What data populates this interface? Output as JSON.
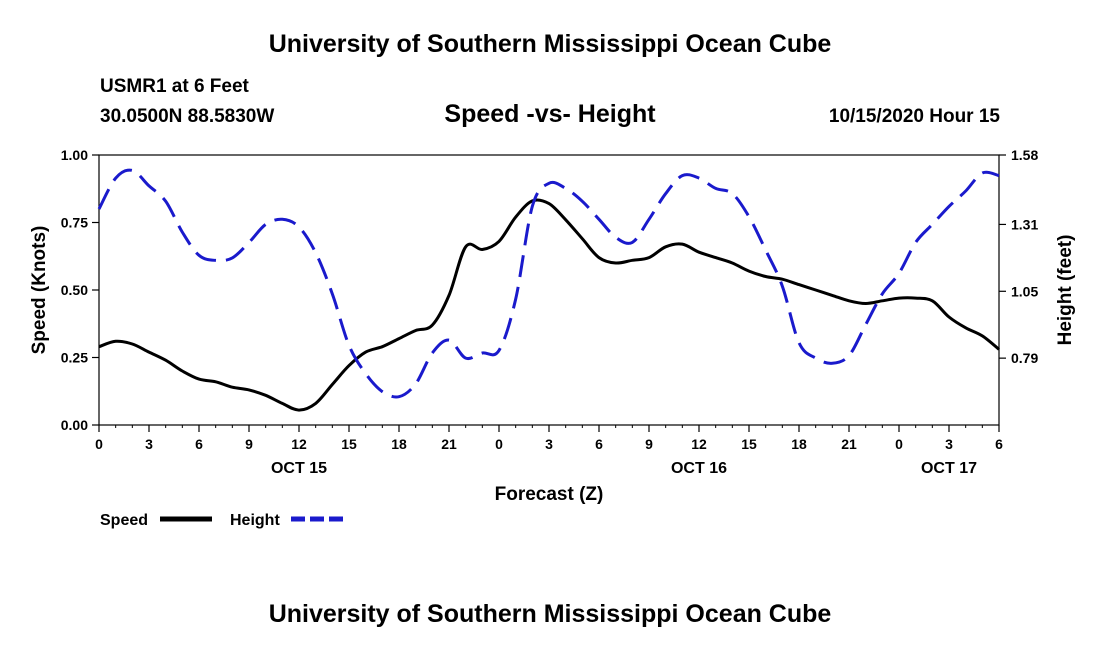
{
  "header": {
    "title_top": "University of Southern Mississippi Ocean Cube",
    "station": "USMR1 at 6 Feet",
    "coords": "30.0500N 88.5830W",
    "chart_title": "Speed -vs- Height",
    "run_time": "10/15/2020 Hour 15",
    "title_bottom": "University of Southern Mississippi Ocean Cube"
  },
  "colors": {
    "speed": "#000000",
    "height": "#1a1acc"
  },
  "chart_data": {
    "type": "line",
    "title": "Speed -vs- Height",
    "xlabel": "Forecast (Z)",
    "ylabel_left": "Speed (Knots)",
    "ylabel_right": "Height (feet)",
    "x_unit": "hours from 10/15 00Z",
    "xlim": [
      0,
      54
    ],
    "ylim_left": [
      0,
      1.0
    ],
    "ylim_right": [
      0.53,
      1.58
    ],
    "left_ticks": [
      "0.00",
      "0.25",
      "0.50",
      "0.75",
      "1.00"
    ],
    "right_ticks": [
      "0.79",
      "1.05",
      "1.31",
      "1.58"
    ],
    "right_tick_values": [
      0.79,
      1.05,
      1.31,
      1.58
    ],
    "x_ticks": [
      "0",
      "3",
      "6",
      "9",
      "12",
      "15",
      "18",
      "21",
      "0",
      "3",
      "6",
      "9",
      "12",
      "15",
      "18",
      "21",
      "0",
      "3",
      "6"
    ],
    "day_labels": [
      {
        "hour": 12,
        "label": "OCT 15"
      },
      {
        "hour": 36,
        "label": "OCT 16"
      },
      {
        "hour": 51,
        "label": "OCT 17"
      }
    ],
    "legend": [
      "Speed",
      "Height"
    ],
    "series": [
      {
        "name": "Speed",
        "axis": "left",
        "style": "solid",
        "x": [
          0,
          1,
          2,
          3,
          4,
          5,
          6,
          7,
          8,
          9,
          10,
          11,
          12,
          13,
          14,
          15,
          16,
          17,
          18,
          19,
          20,
          21,
          22,
          23,
          24,
          25,
          26,
          27,
          28,
          29,
          30,
          31,
          32,
          33,
          34,
          35,
          36,
          37,
          38,
          39,
          40,
          41,
          42,
          43,
          44,
          45,
          46,
          47,
          48,
          49,
          50,
          51,
          52,
          53,
          54
        ],
        "values": [
          0.29,
          0.31,
          0.3,
          0.27,
          0.24,
          0.2,
          0.17,
          0.16,
          0.14,
          0.13,
          0.11,
          0.08,
          0.055,
          0.08,
          0.15,
          0.22,
          0.27,
          0.29,
          0.32,
          0.35,
          0.37,
          0.48,
          0.66,
          0.65,
          0.68,
          0.77,
          0.83,
          0.82,
          0.76,
          0.69,
          0.62,
          0.6,
          0.61,
          0.62,
          0.66,
          0.67,
          0.64,
          0.62,
          0.6,
          0.57,
          0.55,
          0.54,
          0.52,
          0.5,
          0.48,
          0.46,
          0.45,
          0.46,
          0.47,
          0.47,
          0.46,
          0.4,
          0.36,
          0.33,
          0.28
        ]
      },
      {
        "name": "Height",
        "axis": "right",
        "style": "dashed",
        "x": [
          0,
          1,
          2,
          3,
          4,
          5,
          6,
          7,
          8,
          9,
          10,
          11,
          12,
          13,
          14,
          15,
          16,
          17,
          18,
          19,
          20,
          21,
          22,
          23,
          24,
          25,
          26,
          27,
          28,
          29,
          30,
          31,
          32,
          33,
          34,
          35,
          36,
          37,
          38,
          39,
          40,
          41,
          42,
          43,
          44,
          45,
          46,
          47,
          48,
          49,
          50,
          51,
          52,
          53,
          54
        ],
        "values": [
          1.37,
          1.49,
          1.52,
          1.46,
          1.4,
          1.28,
          1.19,
          1.17,
          1.18,
          1.24,
          1.31,
          1.33,
          1.3,
          1.2,
          1.04,
          0.84,
          0.73,
          0.66,
          0.64,
          0.69,
          0.81,
          0.86,
          0.79,
          0.81,
          0.82,
          1.02,
          1.38,
          1.47,
          1.45,
          1.4,
          1.33,
          1.26,
          1.24,
          1.33,
          1.43,
          1.5,
          1.49,
          1.45,
          1.43,
          1.34,
          1.21,
          1.07,
          0.85,
          0.79,
          0.77,
          0.8,
          0.92,
          1.04,
          1.12,
          1.24,
          1.31,
          1.38,
          1.44,
          1.51,
          1.5
        ]
      }
    ]
  }
}
